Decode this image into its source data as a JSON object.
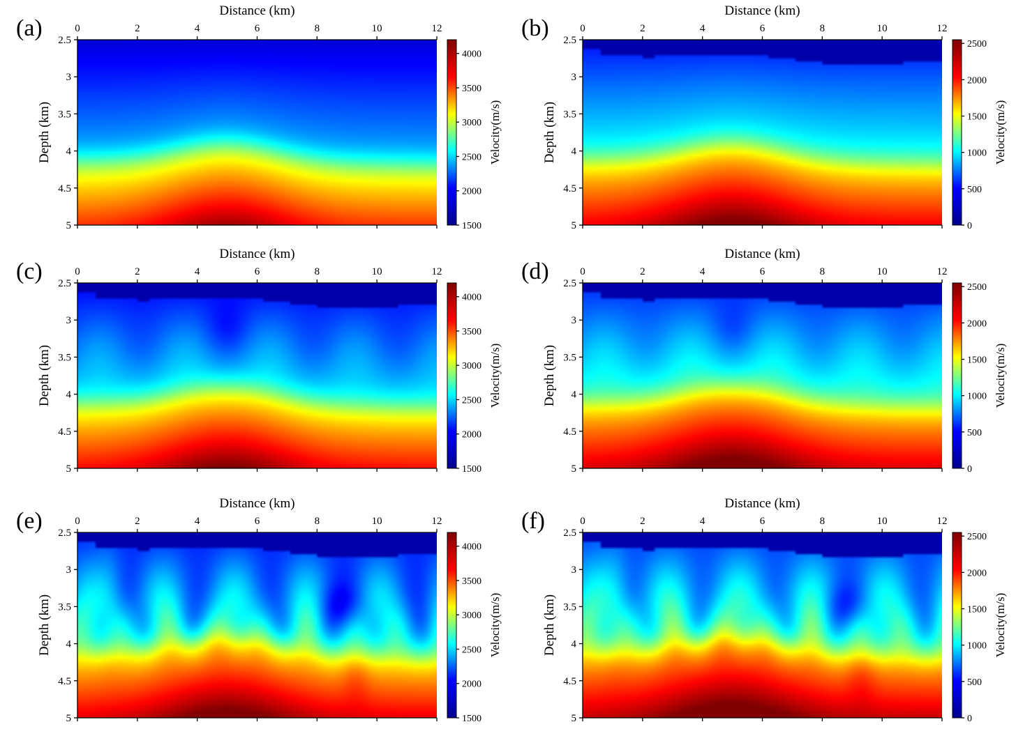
{
  "figure": {
    "x_axis_label": "Distance (km)",
    "y_axis_label": "Depth (km)",
    "colorbar_label": "Velocity(m/s)",
    "colormap": "jet",
    "colormap_stops": [
      "#00008f",
      "#0000ff",
      "#00ffff",
      "#ffff00",
      "#ff0000",
      "#800000"
    ]
  },
  "chart_data": [
    {
      "panel": "(a)",
      "type": "heatmap",
      "xlabel": "Distance (km)",
      "ylabel": "Depth (km)",
      "xlim": [
        0,
        12
      ],
      "ylim": [
        2.5,
        5
      ],
      "xticks": [
        "0",
        "2",
        "4",
        "6",
        "8",
        "10",
        "12"
      ],
      "yticks": [
        "2.5",
        "3",
        "3.5",
        "4",
        "4.5",
        "5"
      ],
      "colorbar": {
        "label": "Velocity(m/s)",
        "range": [
          1500,
          4200
        ],
        "ticks": [
          "1500",
          "2000",
          "2500",
          "3000",
          "3500",
          "4000"
        ]
      },
      "field": {
        "profile": "smooth",
        "water_layer": false,
        "top_fraction": 0.0,
        "anomaly_strength": 0.0
      }
    },
    {
      "panel": "(b)",
      "type": "heatmap",
      "xlabel": "Distance (km)",
      "ylabel": "Depth (km)",
      "xlim": [
        0,
        12
      ],
      "ylim": [
        2.5,
        5
      ],
      "xticks": [
        "0",
        "2",
        "4",
        "6",
        "8",
        "10",
        "12"
      ],
      "yticks": [
        "2.5",
        "3",
        "3.5",
        "4",
        "4.5",
        "5"
      ],
      "colorbar": {
        "label": "Velocity(m/s)",
        "range": [
          0,
          2550
        ],
        "ticks": [
          "0",
          "500",
          "1000",
          "1500",
          "2000",
          "2500"
        ]
      },
      "field": {
        "profile": "smooth",
        "water_layer": true,
        "top_fraction": 0.35,
        "anomaly_strength": 0.0
      }
    },
    {
      "panel": "(c)",
      "type": "heatmap",
      "xlabel": "Distance (km)",
      "ylabel": "Depth (km)",
      "xlim": [
        0,
        12
      ],
      "ylim": [
        2.5,
        5
      ],
      "xticks": [
        "0",
        "2",
        "4",
        "6",
        "8",
        "10",
        "12"
      ],
      "yticks": [
        "2.5",
        "3",
        "3.5",
        "4",
        "4.5",
        "5"
      ],
      "colorbar": {
        "label": "Velocity(m/s)",
        "range": [
          1500,
          4200
        ],
        "ticks": [
          "1500",
          "2000",
          "2500",
          "3000",
          "3500",
          "4000"
        ]
      },
      "field": {
        "profile": "inverted",
        "water_layer": true,
        "top_fraction": 0.12,
        "anomaly_strength": 0.55
      }
    },
    {
      "panel": "(d)",
      "type": "heatmap",
      "xlabel": "Distance (km)",
      "ylabel": "Depth (km)",
      "xlim": [
        0,
        12
      ],
      "ylim": [
        2.5,
        5
      ],
      "xticks": [
        "0",
        "2",
        "4",
        "6",
        "8",
        "10",
        "12"
      ],
      "yticks": [
        "2.5",
        "3",
        "3.5",
        "4",
        "4.5",
        "5"
      ],
      "colorbar": {
        "label": "Velocity(m/s)",
        "range": [
          0,
          2550
        ],
        "ticks": [
          "0",
          "500",
          "1000",
          "1500",
          "2000",
          "2500"
        ]
      },
      "field": {
        "profile": "inverted",
        "water_layer": true,
        "top_fraction": 0.37,
        "anomaly_strength": 0.55
      }
    },
    {
      "panel": "(e)",
      "type": "heatmap",
      "xlabel": "Distance (km)",
      "ylabel": "Depth (km)",
      "xlim": [
        0,
        12
      ],
      "ylim": [
        2.5,
        5
      ],
      "xticks": [
        "0",
        "2",
        "4",
        "6",
        "8",
        "10",
        "12"
      ],
      "yticks": [
        "2.5",
        "3",
        "3.5",
        "4",
        "4.5",
        "5"
      ],
      "colorbar": {
        "label": "Velocity(m/s)",
        "range": [
          1500,
          4200
        ],
        "ticks": [
          "1500",
          "2000",
          "2500",
          "3000",
          "3500",
          "4000"
        ]
      },
      "field": {
        "profile": "rough",
        "water_layer": true,
        "top_fraction": 0.2,
        "anomaly_strength": 1.0
      }
    },
    {
      "panel": "(f)",
      "type": "heatmap",
      "xlabel": "Distance (km)",
      "ylabel": "Depth (km)",
      "xlim": [
        0,
        12
      ],
      "ylim": [
        2.5,
        5
      ],
      "xticks": [
        "0",
        "2",
        "4",
        "6",
        "8",
        "10",
        "12"
      ],
      "yticks": [
        "2.5",
        "3",
        "3.5",
        "4",
        "4.5",
        "5"
      ],
      "colorbar": {
        "label": "Velocity(m/s)",
        "range": [
          0,
          2550
        ],
        "ticks": [
          "0",
          "500",
          "1000",
          "1500",
          "2000",
          "2500"
        ]
      },
      "field": {
        "profile": "rough",
        "water_layer": true,
        "top_fraction": 0.4,
        "anomaly_strength": 1.0
      }
    }
  ]
}
